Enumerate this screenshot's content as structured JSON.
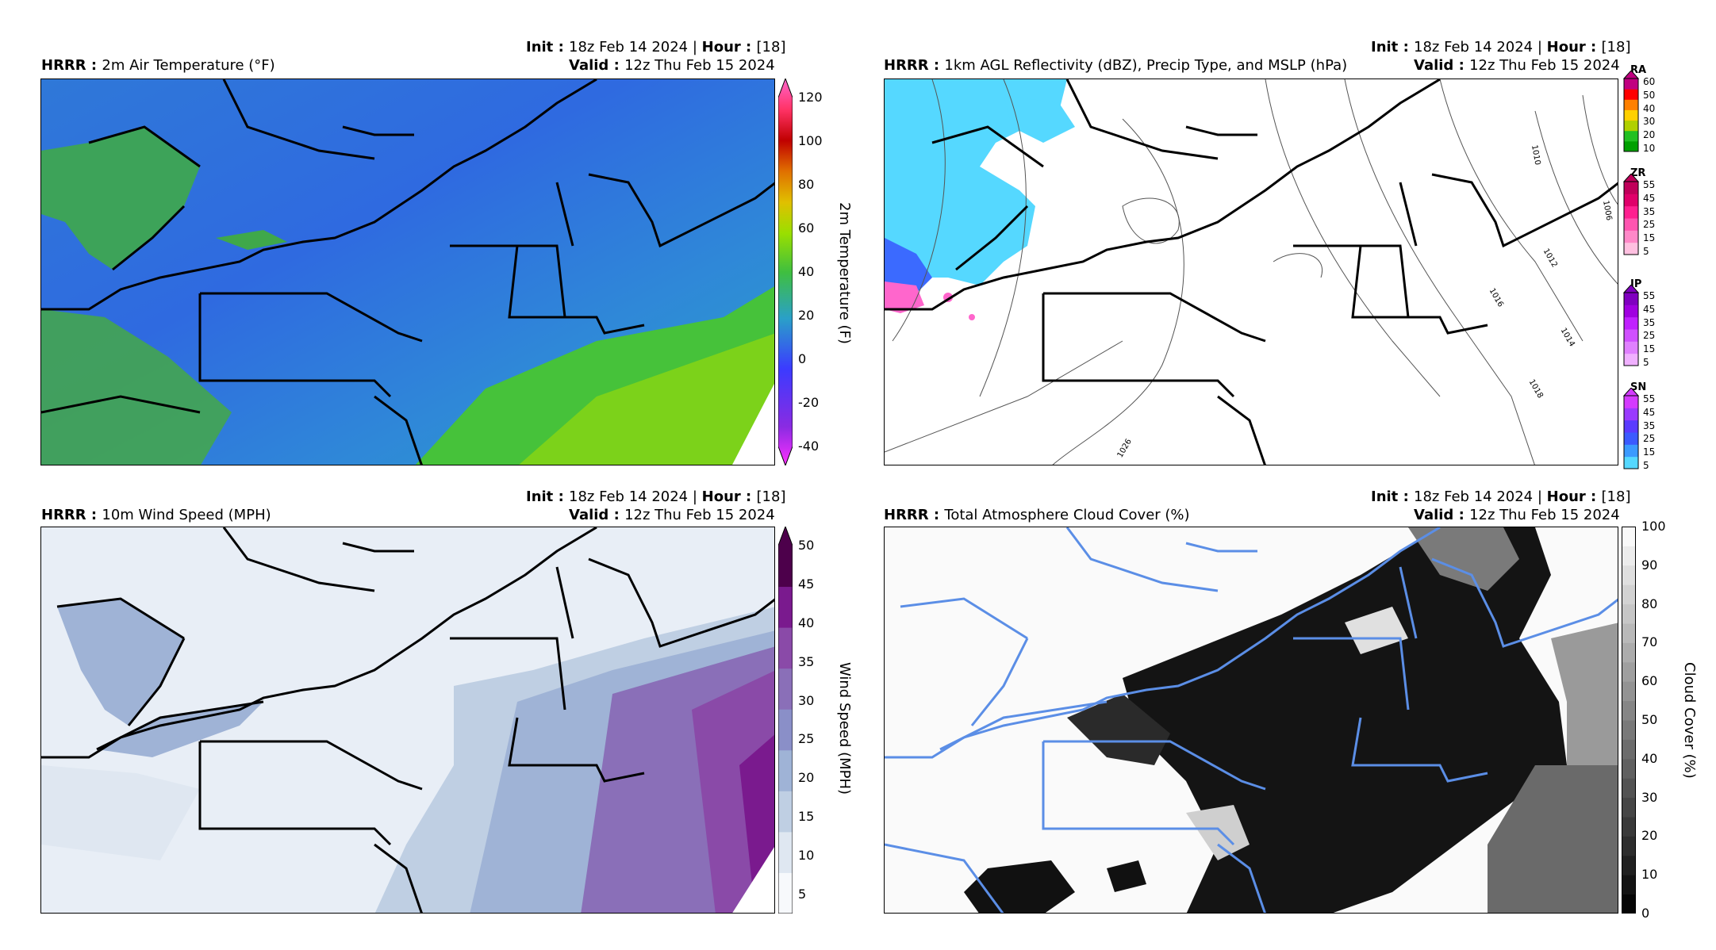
{
  "common": {
    "model": "HRRR",
    "init_label": "Init",
    "init_value": "18z Feb 14 2024",
    "hour_label": "Hour",
    "hour_value": "[18]",
    "valid_label": "Valid",
    "valid_value": "12z Thu Feb 15 2024"
  },
  "panels": {
    "temp": {
      "title": "2m Air Temperature (°F)",
      "colorbar_label": "2m Temperature (F)",
      "ticks": [
        "120",
        "100",
        "80",
        "60",
        "40",
        "20",
        "0",
        "-20",
        "-40"
      ]
    },
    "refl": {
      "title": "1km AGL Reflectivity (dBZ), Precip Type, and MSLP (hPa)",
      "ptypes": [
        {
          "name": "RA",
          "ticks": [
            "60",
            "50",
            "40",
            "30",
            "20",
            "10"
          ]
        },
        {
          "name": "ZR",
          "ticks": [
            "55",
            "45",
            "35",
            "25",
            "15",
            "5"
          ]
        },
        {
          "name": "IP",
          "ticks": [
            "55",
            "45",
            "35",
            "25",
            "15",
            "5"
          ]
        },
        {
          "name": "SN",
          "ticks": [
            "55",
            "45",
            "35",
            "25",
            "15",
            "5"
          ]
        }
      ],
      "contours": [
        "1010",
        "1006",
        "1012",
        "1016",
        "1014",
        "1018",
        "1026"
      ]
    },
    "wind": {
      "title": "10m Wind Speed (MPH)",
      "colorbar_label": "Wind Speed (MPH)",
      "ticks": [
        "50",
        "45",
        "40",
        "35",
        "30",
        "25",
        "20",
        "15",
        "10",
        "5"
      ]
    },
    "cloud": {
      "title": "Total Atmosphere Cloud Cover (%)",
      "colorbar_label": "Cloud Cover (%)",
      "ticks": [
        "100",
        "90",
        "80",
        "70",
        "60",
        "50",
        "40",
        "30",
        "20",
        "10",
        "0"
      ]
    }
  },
  "colors": {
    "temp_scale": [
      "#ff2fff",
      "#8a2be2",
      "#3b3bff",
      "#2f6fe0",
      "#2aa0c8",
      "#3fbf3f",
      "#9adf00",
      "#e0c000",
      "#e07000",
      "#c00000",
      "#ff3366",
      "#ff66cc"
    ],
    "wind_scale": [
      "#f7f9fc",
      "#dfe7f1",
      "#bfcfe3",
      "#9fb3d6",
      "#8a8fc8",
      "#8a6fb8",
      "#8a4aa8",
      "#7a1a8e",
      "#4d004b"
    ],
    "cloud_border": "#5b8ee6"
  }
}
